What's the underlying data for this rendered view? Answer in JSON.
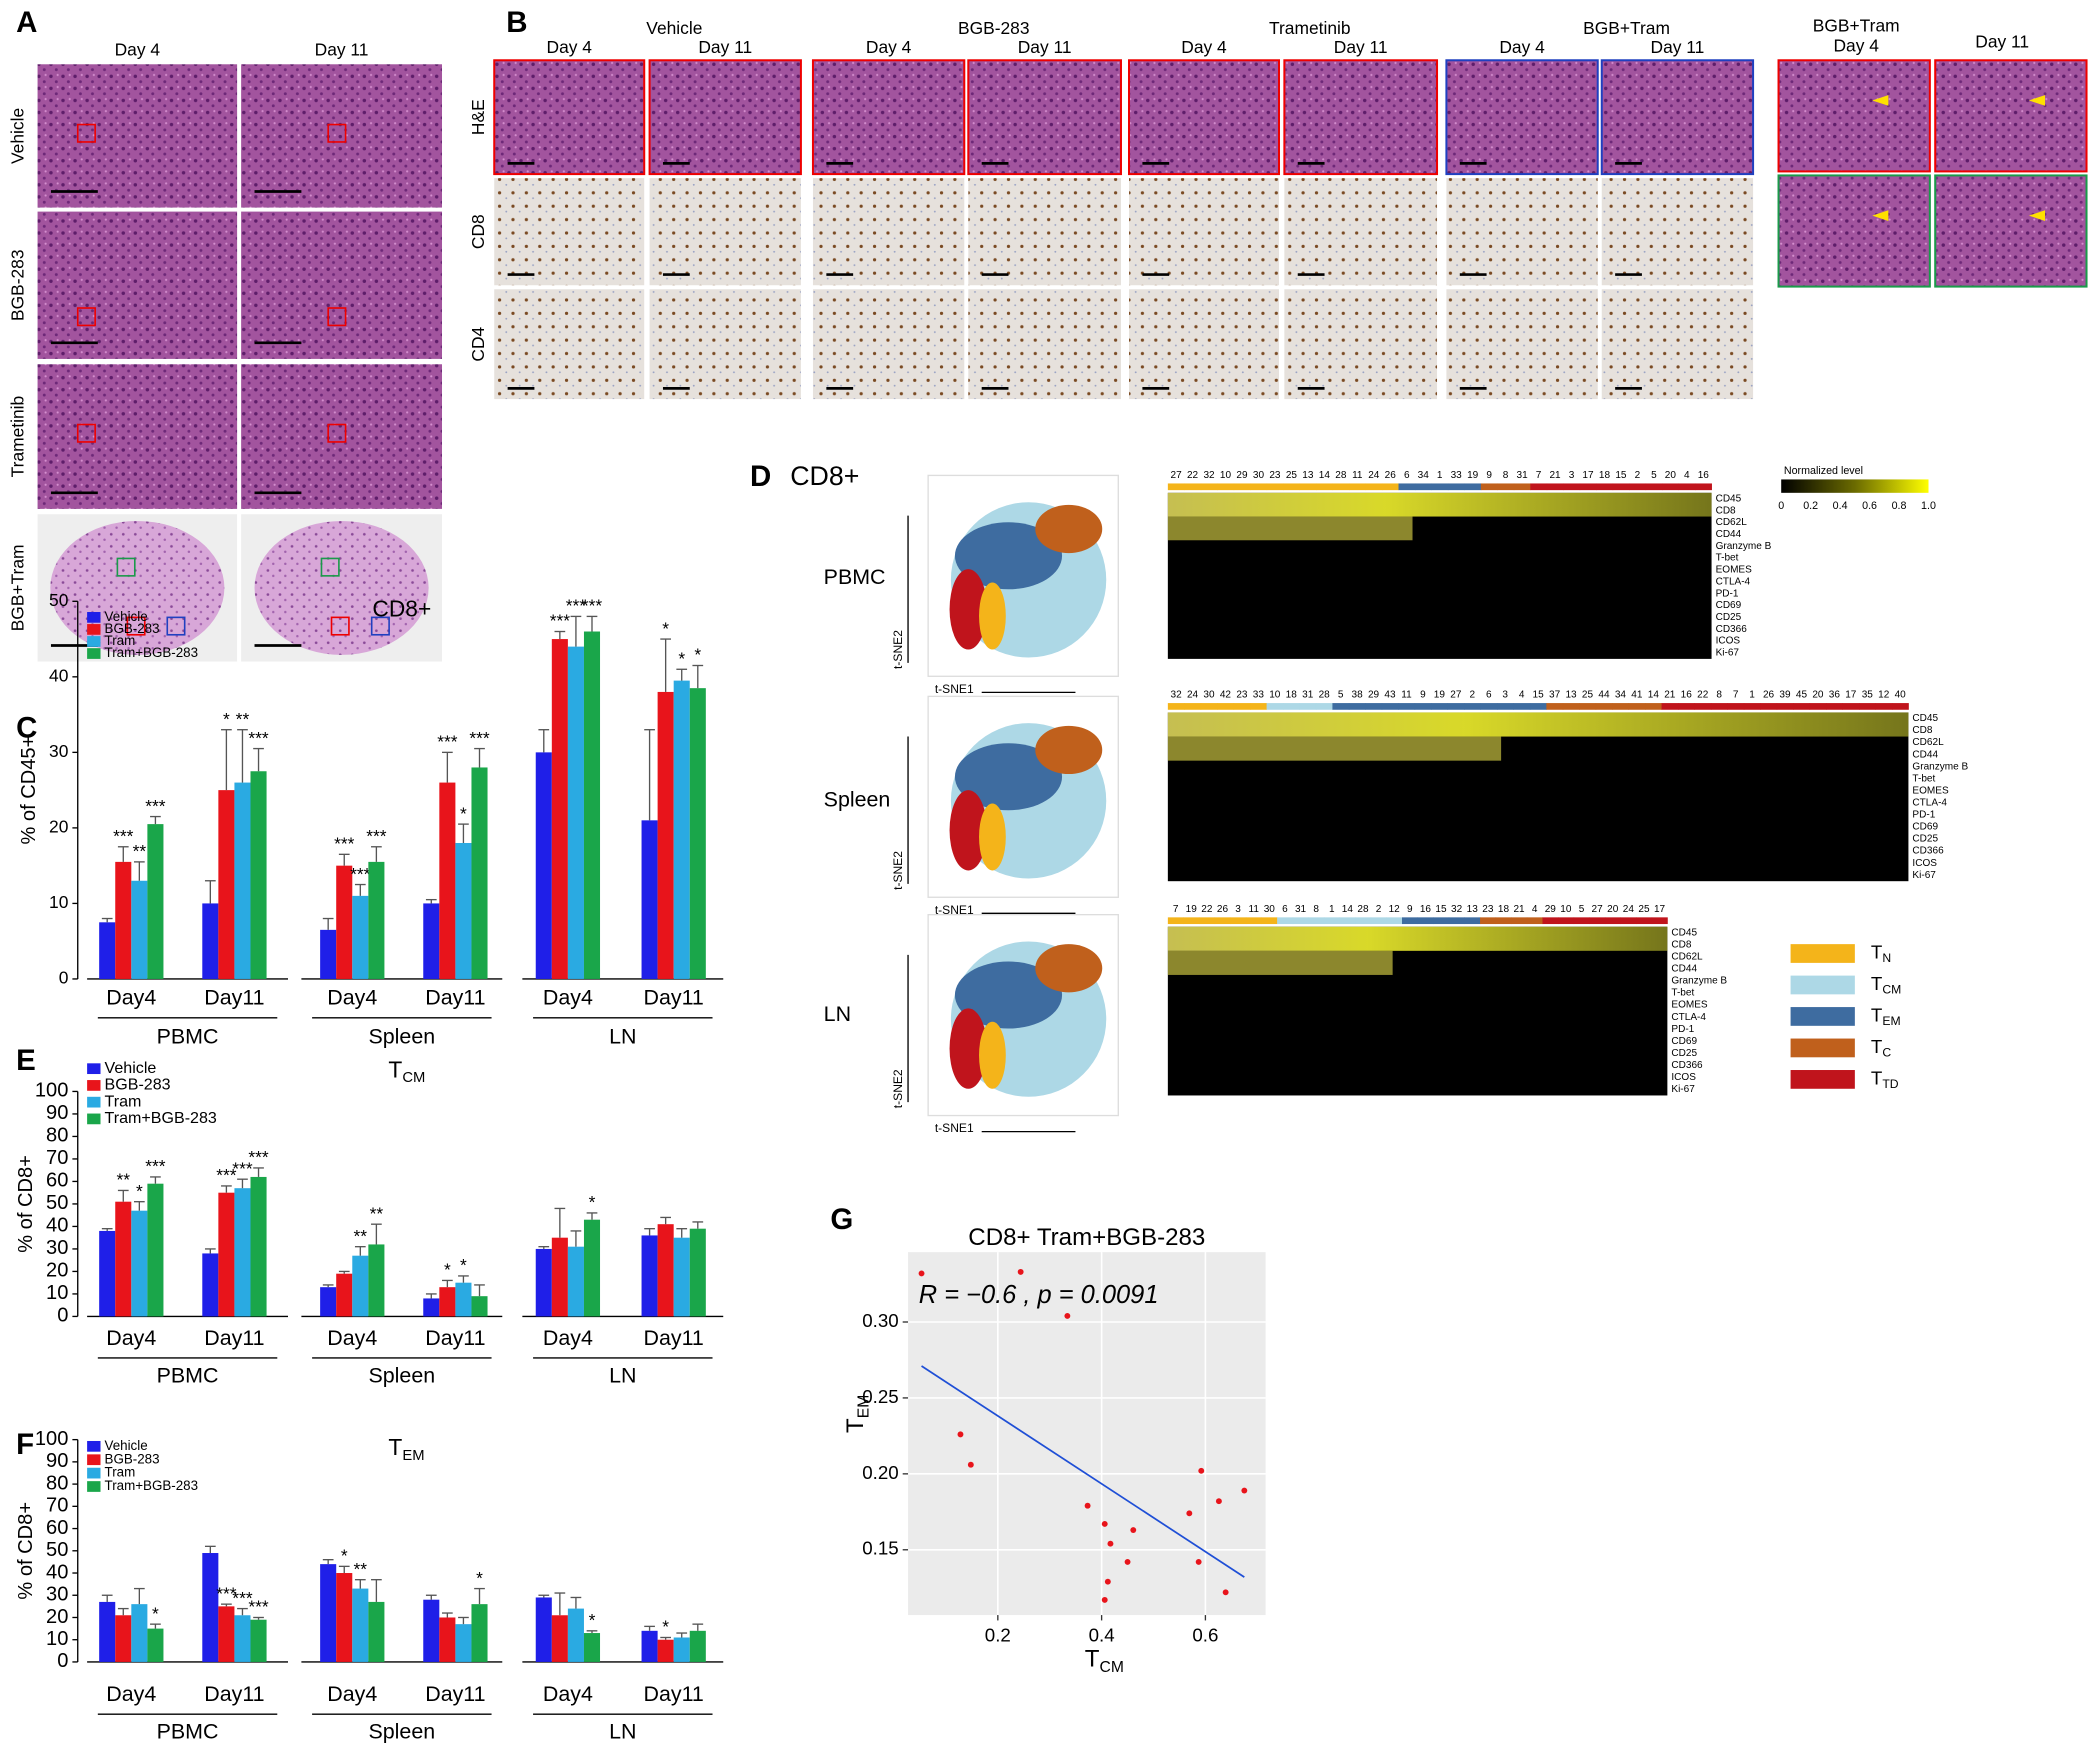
{
  "panel_labels": [
    "A",
    "B",
    "C",
    "D",
    "E",
    "F",
    "G"
  ],
  "panel_a": {
    "columns": [
      "Day 4",
      "Day 11"
    ],
    "rows": [
      "Vehicle",
      "BGB-283",
      "Trametinib",
      "BGB+Tram"
    ]
  },
  "panel_b": {
    "groups": [
      {
        "name": "Vehicle",
        "days": [
          "Day 4",
          "Day 11"
        ]
      },
      {
        "name": "BGB-283",
        "days": [
          "Day 4",
          "Day 11"
        ]
      },
      {
        "name": "Trametinib",
        "days": [
          "Day 4",
          "Day 11"
        ]
      },
      {
        "name": "BGB+Tram",
        "days": [
          "Day 4",
          "Day 11"
        ]
      }
    ],
    "rows": [
      "H&E",
      "CD8",
      "CD4"
    ],
    "inset": {
      "name": "BGB+Tram",
      "days": [
        "Day 4",
        "Day 11"
      ]
    }
  },
  "panel_d": {
    "title": "CD8+",
    "tsne_x": "t-SNE1",
    "tsne_y": "t-SNE2",
    "markers": [
      "CD45",
      "CD8",
      "CD62L",
      "CD44",
      "Granzyme B",
      "T-bet",
      "EOMES",
      "CTLA-4",
      "PD-1",
      "CD69",
      "CD25",
      "CD366",
      "ICOS",
      "Ki-67"
    ],
    "heatmaps": [
      {
        "name": "PBMC",
        "clusters": [
          27,
          22,
          32,
          10,
          29,
          30,
          23,
          25,
          13,
          14,
          28,
          11,
          24,
          26,
          6,
          34,
          1,
          33,
          19,
          9,
          8,
          31,
          7,
          21,
          3,
          17,
          18,
          15,
          2,
          5,
          20,
          4,
          16
        ],
        "subsets": [
          0,
          0,
          0,
          0,
          0,
          0,
          0,
          0,
          0,
          0,
          0,
          0,
          0,
          0,
          2,
          2,
          2,
          2,
          2,
          3,
          3,
          3,
          4,
          4,
          4,
          4,
          4,
          4,
          4,
          4,
          4,
          4,
          4
        ]
      },
      {
        "name": "Spleen",
        "clusters": [
          32,
          24,
          30,
          42,
          23,
          33,
          10,
          18,
          31,
          28,
          5,
          38,
          29,
          43,
          11,
          9,
          19,
          27,
          2,
          6,
          3,
          4,
          15,
          37,
          13,
          25,
          44,
          34,
          41,
          14,
          21,
          16,
          22,
          8,
          7,
          1,
          26,
          39,
          45,
          20,
          36,
          17,
          35,
          12,
          40
        ],
        "subsets": [
          0,
          0,
          0,
          0,
          0,
          0,
          1,
          1,
          1,
          1,
          2,
          2,
          2,
          2,
          2,
          2,
          2,
          2,
          2,
          2,
          2,
          2,
          2,
          3,
          3,
          3,
          3,
          3,
          3,
          3,
          4,
          4,
          4,
          4,
          4,
          4,
          4,
          4,
          4,
          4,
          4,
          4,
          4,
          4,
          4
        ]
      },
      {
        "name": "LN",
        "clusters": [
          7,
          19,
          22,
          26,
          3,
          11,
          30,
          6,
          31,
          8,
          1,
          14,
          28,
          2,
          12,
          9,
          16,
          15,
          32,
          13,
          23,
          18,
          21,
          4,
          29,
          10,
          5,
          27,
          20,
          24,
          25,
          17
        ],
        "subsets": [
          0,
          0,
          0,
          0,
          0,
          0,
          0,
          1,
          1,
          1,
          1,
          1,
          1,
          1,
          1,
          2,
          2,
          2,
          2,
          2,
          3,
          3,
          3,
          3,
          4,
          4,
          4,
          4,
          4,
          4,
          4,
          4
        ]
      }
    ],
    "colorbar": {
      "title": "Normalized level",
      "ticks": [
        0,
        0.2,
        0.4,
        0.6,
        0.8,
        {
          "value": 1,
          "label": "1.0"
        }
      ]
    },
    "legend": [
      {
        "text": "T",
        "sub": "N",
        "color": "#f4b41a"
      },
      {
        "text": "T",
        "sub": "CM",
        "color": "#add8e6"
      },
      {
        "text": "T",
        "sub": "EM",
        "color": "#3e6ca0"
      },
      {
        "text": "T",
        "sub": "C",
        "color": "#c0601c"
      },
      {
        "text": "T",
        "sub": "TD",
        "color": "#c0141c"
      }
    ]
  },
  "chart_data": [
    {
      "type": "bar",
      "title": "CD8+",
      "y_label": "% of CD45+",
      "groups": [
        "PBMC",
        "Spleen",
        "LN"
      ],
      "categories": [
        "Day4",
        "Day11",
        "Day4",
        "Day11",
        "Day4",
        "Day11"
      ],
      "ylim": [
        0,
        50
      ],
      "yticks": [
        0,
        10,
        20,
        30,
        40,
        50
      ],
      "series": [
        {
          "name": "Vehicle",
          "color": "#1f1fe8",
          "values": [
            7.5,
            10,
            6.5,
            10,
            30,
            21
          ],
          "errors": [
            0.5,
            3,
            1.5,
            0.5,
            3,
            12
          ],
          "significance": [
            null,
            null,
            null,
            null,
            null,
            null
          ]
        },
        {
          "name": "BGB-283",
          "color": "#e8141b",
          "values": [
            15.5,
            25,
            15,
            26,
            45,
            38
          ],
          "errors": [
            2,
            8,
            1.5,
            4,
            1,
            7
          ],
          "significance": [
            "***",
            "*",
            "***",
            "***",
            "***",
            "*"
          ]
        },
        {
          "name": "Tram",
          "color": "#2aaae2",
          "values": [
            13,
            26,
            11,
            18,
            44,
            39.5
          ],
          "errors": [
            2.5,
            7,
            1.5,
            2.5,
            4,
            1.5
          ],
          "significance": [
            "**",
            "**",
            "***",
            "*",
            "***",
            "*"
          ]
        },
        {
          "name": "Tram+BGB-283",
          "color": "#1aa64a",
          "values": [
            20.5,
            27.5,
            15.5,
            28,
            46,
            38.5
          ],
          "errors": [
            1,
            3,
            2,
            2.5,
            2,
            3
          ],
          "significance": [
            "***",
            "***",
            "***",
            "***",
            "***",
            "*"
          ]
        }
      ]
    },
    {
      "type": "bar",
      "title": {
        "text": "T",
        "sub": "CM"
      },
      "y_label": "% of CD8+",
      "groups": [
        "PBMC",
        "Spleen",
        "LN"
      ],
      "categories": [
        "Day4",
        "Day11",
        "Day4",
        "Day11",
        "Day4",
        "Day11"
      ],
      "ylim": [
        0,
        100
      ],
      "yticks": [
        0,
        10,
        20,
        30,
        40,
        50,
        60,
        70,
        80,
        90,
        100
      ],
      "series": [
        {
          "name": "Vehicle",
          "color": "#1f1fe8",
          "values": [
            38,
            28,
            13,
            8,
            30,
            36
          ],
          "errors": [
            1,
            2,
            1,
            2,
            1,
            3
          ],
          "significance": [
            null,
            null,
            null,
            null,
            null,
            null
          ]
        },
        {
          "name": "BGB-283",
          "color": "#e8141b",
          "values": [
            51,
            55,
            19,
            13,
            35,
            41
          ],
          "errors": [
            5,
            3,
            1,
            3,
            13,
            3
          ],
          "significance": [
            "**",
            "***",
            null,
            "*",
            null,
            null
          ]
        },
        {
          "name": "Tram",
          "color": "#2aaae2",
          "values": [
            47,
            57,
            27,
            15,
            31,
            35
          ],
          "errors": [
            4,
            4,
            4,
            3,
            7,
            4
          ],
          "significance": [
            "*",
            "***",
            "**",
            "*",
            null,
            null
          ]
        },
        {
          "name": "Tram+BGB-283",
          "color": "#1aa64a",
          "values": [
            59,
            62,
            32,
            9,
            43,
            39
          ],
          "errors": [
            3,
            4,
            9,
            5,
            3,
            3
          ],
          "significance": [
            "***",
            "***",
            "**",
            null,
            "*",
            null
          ]
        }
      ]
    },
    {
      "type": "bar",
      "title": {
        "text": "T",
        "sub": "EM"
      },
      "y_label": "% of CD8+",
      "groups": [
        "PBMC",
        "Spleen",
        "LN"
      ],
      "categories": [
        "Day4",
        "Day11",
        "Day4",
        "Day11",
        "Day4",
        "Day11"
      ],
      "ylim": [
        0,
        100
      ],
      "yticks": [
        0,
        10,
        20,
        30,
        40,
        50,
        60,
        70,
        80,
        90,
        100
      ],
      "series": [
        {
          "name": "Vehicle",
          "color": "#1f1fe8",
          "values": [
            27,
            49,
            44,
            28,
            29,
            14
          ],
          "errors": [
            3,
            3,
            2,
            2,
            1,
            2
          ],
          "significance": [
            null,
            null,
            null,
            null,
            null,
            null
          ]
        },
        {
          "name": "BGB-283",
          "color": "#e8141b",
          "values": [
            21,
            25,
            40,
            20,
            21,
            10
          ],
          "errors": [
            3,
            1,
            3,
            2,
            10,
            1
          ],
          "significance": [
            null,
            "***",
            "*",
            null,
            null,
            "*"
          ]
        },
        {
          "name": "Tram",
          "color": "#2aaae2",
          "values": [
            26,
            21,
            33,
            17,
            24,
            11
          ],
          "errors": [
            7,
            3,
            4,
            3,
            5,
            2
          ],
          "significance": [
            null,
            "***",
            "**",
            null,
            null,
            null
          ]
        },
        {
          "name": "Tram+BGB-283",
          "color": "#1aa64a",
          "values": [
            15,
            19,
            27,
            26,
            13,
            14
          ],
          "errors": [
            2,
            1,
            10,
            7,
            1,
            3
          ],
          "significance": [
            "*",
            "***",
            null,
            "*",
            "*",
            null
          ]
        }
      ]
    },
    {
      "type": "scatter",
      "title": "CD8+ Tram+BGB-283",
      "annotation": "R = −0.6 , p = 0.0091",
      "x_label": {
        "text": "T",
        "sub": "CM"
      },
      "y_label": {
        "text": "T",
        "sub": "EM"
      },
      "xlim": [
        0.027,
        0.716
      ],
      "ylim": [
        0.107,
        0.346
      ],
      "xticks": [
        0.2,
        0.4,
        0.6
      ],
      "yticks": [
        {
          "value": 0.15,
          "label": "0.15"
        },
        {
          "value": 0.2,
          "label": "0.20"
        },
        {
          "value": 0.25,
          "label": "0.25"
        },
        {
          "value": 0.3,
          "label": "0.30"
        }
      ],
      "grid": true,
      "background": "#ebebeb",
      "series": [
        {
          "color": "#e8141b",
          "x": [
            0.053,
            0.244,
            0.334,
            0.128,
            0.148,
            0.373,
            0.406,
            0.417,
            0.461,
            0.45,
            0.412,
            0.406,
            0.569,
            0.592,
            0.587,
            0.626,
            0.639,
            0.675
          ],
          "values": [
            0.332,
            0.333,
            0.304,
            0.226,
            0.206,
            0.179,
            0.167,
            0.154,
            0.163,
            0.142,
            0.129,
            0.117,
            0.174,
            0.202,
            0.142,
            0.182,
            0.122,
            0.189
          ]
        }
      ],
      "fit": {
        "color": "#1f4fd6",
        "x": [
          0.053,
          0.675
        ],
        "values": [
          0.271,
          0.132
        ]
      }
    }
  ]
}
